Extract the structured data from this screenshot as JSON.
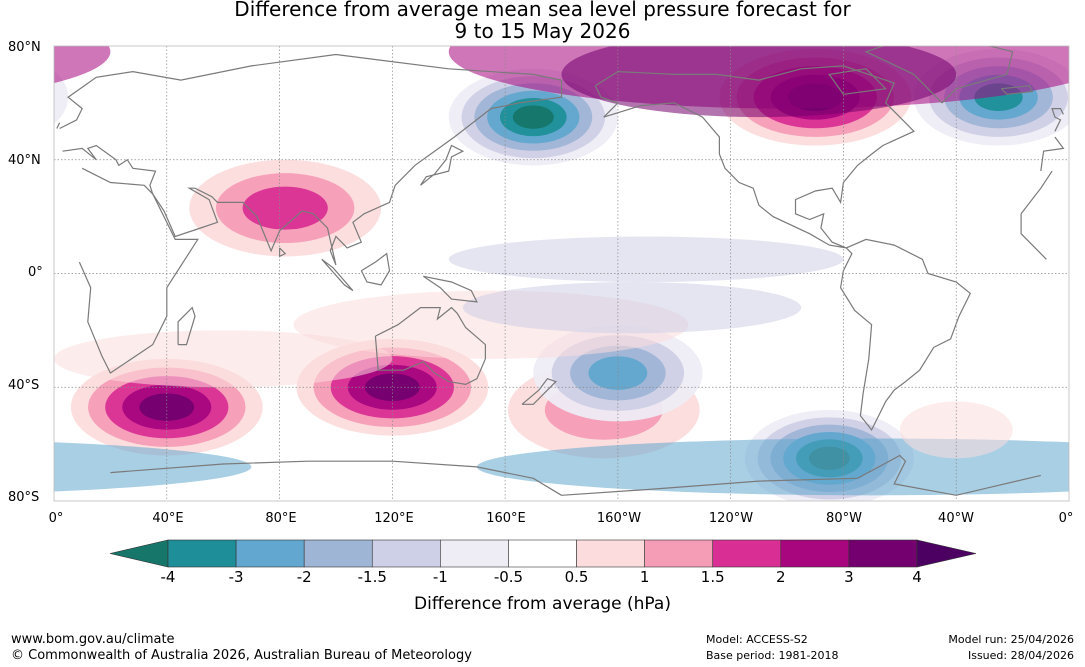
{
  "title_line1": "Difference from average mean sea level pressure forecast for",
  "title_line2": "9 to 15 May 2026",
  "lat_labels": [
    "80°N",
    "40°N",
    "0°",
    "40°S",
    "80°S"
  ],
  "lon_labels": [
    "0°",
    "40°E",
    "80°E",
    "120°E",
    "160°E",
    "160°W",
    "120°W",
    "80°W",
    "40°W",
    "0°"
  ],
  "colorbar": {
    "ticks": [
      "-4",
      "-3",
      "-2",
      "-1.5",
      "-1",
      "-0.5",
      "0.5",
      "1",
      "1.5",
      "2",
      "3",
      "4"
    ],
    "colors": [
      "#16766a",
      "#1e8f98",
      "#62a7cf",
      "#9fb5d6",
      "#cdd0e6",
      "#eeecf4",
      "#ffffff",
      "#fcdcdc",
      "#f59cb6",
      "#d92f94",
      "#a8067f",
      "#73006e",
      "#4b0062"
    ],
    "label": "Difference from average (hPa)"
  },
  "map": {
    "ocean_color": "#ffffff",
    "coast_color": "#7a7a7a",
    "grid_color": "#888888",
    "anomalies": [
      {
        "name": "north-pacific-low",
        "lon": 170,
        "lat": 55,
        "hpa": -4
      },
      {
        "name": "north-atlantic-low",
        "lon": -25,
        "lat": 62,
        "hpa": -3
      },
      {
        "name": "canada-high",
        "lon": -90,
        "lat": 62,
        "hpa": 4
      },
      {
        "name": "south-indian-high",
        "lon": 40,
        "lat": -47,
        "hpa": 4
      },
      {
        "name": "australia-high",
        "lon": 120,
        "lat": -40,
        "hpa": 4
      },
      {
        "name": "south-pacific-high",
        "lon": -165,
        "lat": -48,
        "hpa": 1.5
      },
      {
        "name": "southern-ocean-low",
        "lon": -85,
        "lat": -65,
        "hpa": -4
      },
      {
        "name": "tibet-high",
        "lon": 82,
        "lat": 23,
        "hpa": 2
      },
      {
        "name": "south-pacific-low",
        "lon": -160,
        "lat": -35,
        "hpa": -2
      }
    ]
  },
  "footer": {
    "url": "www.bom.gov.au/climate",
    "copyright": "© Commonwealth of Australia 2026, Australian Bureau of Meteorology",
    "model": "Model: ACCESS-S2",
    "base_period": "Base period: 1981-2018",
    "model_run": "Model run: 25/04/2026",
    "issued": "Issued: 28/04/2026"
  }
}
